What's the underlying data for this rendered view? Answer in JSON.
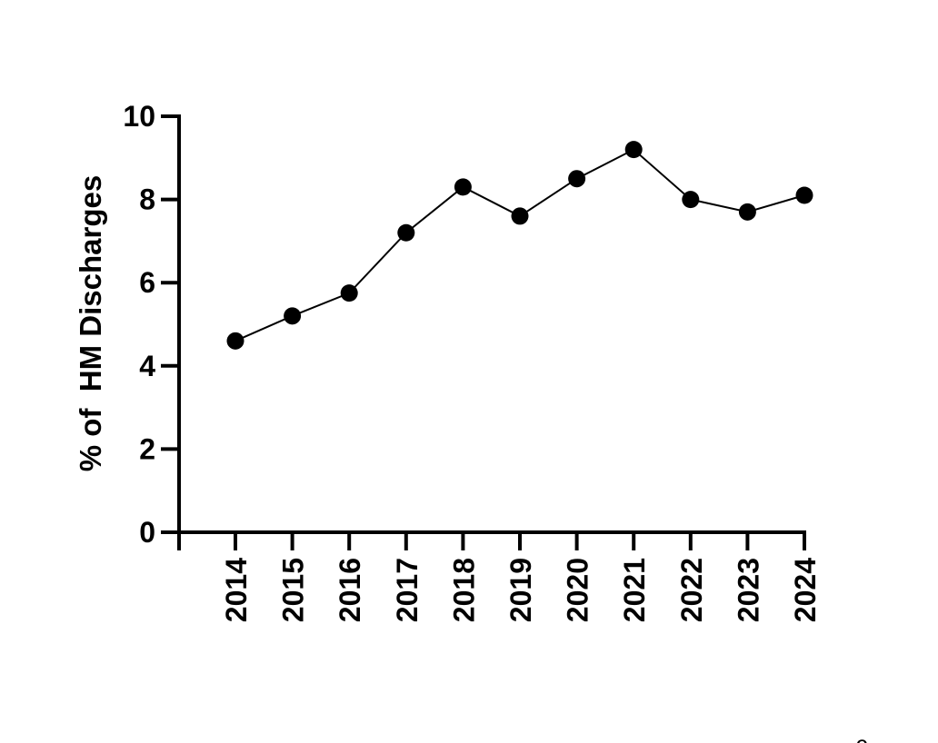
{
  "chart_data": {
    "type": "line",
    "title": "",
    "xlabel": "",
    "ylabel": "% of  HM Discharges",
    "categories": [
      "2014",
      "2015",
      "2016",
      "2017",
      "2018",
      "2019",
      "2020",
      "2021",
      "2022",
      "2023",
      "2024"
    ],
    "series": [
      {
        "values": [
          4.6,
          5.2,
          5.75,
          7.2,
          8.3,
          7.6,
          8.5,
          9.2,
          8.0,
          7.7,
          8.1
        ],
        "color": "#000000",
        "marker": "filled-circle"
      }
    ],
    "ylim": [
      0,
      10
    ],
    "yticks": [
      "0",
      "2",
      "4",
      "6",
      "8",
      "10"
    ],
    "grid": false,
    "legend": "none"
  },
  "corner_mark": "c"
}
